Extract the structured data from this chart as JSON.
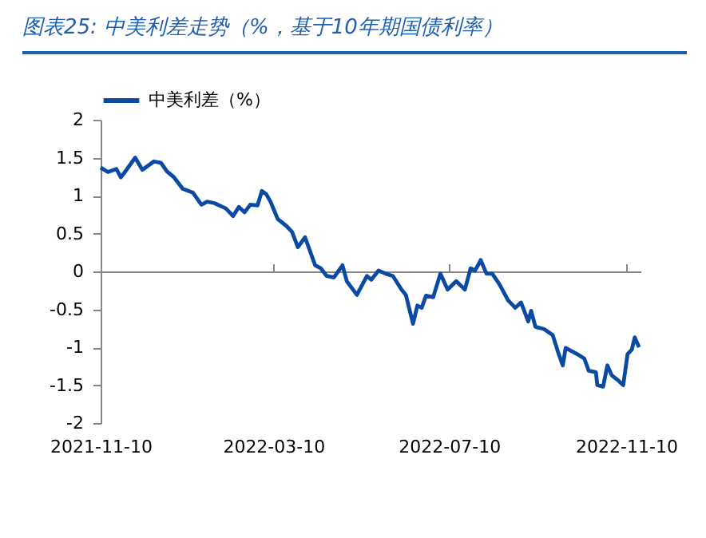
{
  "chart_data": {
    "type": "line",
    "title": "图表25:  中美利差走势（%，基于10年期国债利率）",
    "x": [
      "2021-11-10",
      "2021-11-15",
      "2021-11-21",
      "2021-11-24",
      "2021-11-28",
      "2021-12-04",
      "2021-12-09",
      "2021-12-17",
      "2021-12-22",
      "2021-12-26",
      "2021-12-31",
      "2022-01-06",
      "2022-01-13",
      "2022-01-19",
      "2022-01-23",
      "2022-01-28",
      "2022-02-05",
      "2022-02-10",
      "2022-02-14",
      "2022-02-18",
      "2022-02-22",
      "2022-02-27",
      "2022-03-02",
      "2022-03-05",
      "2022-03-08",
      "2022-03-13",
      "2022-03-19",
      "2022-03-23",
      "2022-03-27",
      "2022-04-01",
      "2022-04-08",
      "2022-04-12",
      "2022-04-16",
      "2022-04-21",
      "2022-04-27",
      "2022-04-30",
      "2022-05-07",
      "2022-05-14",
      "2022-05-17",
      "2022-05-22",
      "2022-05-27",
      "2022-06-01",
      "2022-06-07",
      "2022-06-10",
      "2022-06-15",
      "2022-06-18",
      "2022-06-21",
      "2022-06-24",
      "2022-06-29",
      "2022-07-04",
      "2022-07-09",
      "2022-07-15",
      "2022-07-21",
      "2022-07-25",
      "2022-07-28",
      "2022-07-31",
      "2022-08-01",
      "2022-08-05",
      "2022-08-09",
      "2022-08-14",
      "2022-08-20",
      "2022-08-25",
      "2022-08-29",
      "2022-09-03",
      "2022-09-05",
      "2022-09-08",
      "2022-09-14",
      "2022-09-20",
      "2022-09-24",
      "2022-09-27",
      "2022-09-29",
      "2022-10-07",
      "2022-10-12",
      "2022-10-15",
      "2022-10-20",
      "2022-10-21",
      "2022-10-25",
      "2022-10-28",
      "2022-10-31",
      "2022-11-04",
      "2022-11-08",
      "2022-11-11",
      "2022-11-14",
      "2022-11-16",
      "2022-11-19"
    ],
    "series": [
      {
        "name": "中美利差（%）",
        "color": "#0b4aa2",
        "values": [
          1.37,
          1.31,
          1.35,
          1.24,
          1.34,
          1.5,
          1.34,
          1.45,
          1.43,
          1.32,
          1.24,
          1.09,
          1.04,
          0.88,
          0.92,
          0.9,
          0.83,
          0.73,
          0.85,
          0.78,
          0.88,
          0.87,
          1.06,
          1.02,
          0.92,
          0.69,
          0.6,
          0.52,
          0.32,
          0.45,
          0.08,
          0.04,
          -0.06,
          -0.08,
          0.08,
          -0.13,
          -0.31,
          -0.06,
          -0.11,
          0.01,
          -0.03,
          -0.06,
          -0.24,
          -0.31,
          -0.69,
          -0.45,
          -0.48,
          -0.32,
          -0.34,
          -0.03,
          -0.24,
          -0.13,
          -0.24,
          0.04,
          0.01,
          0.11,
          0.15,
          -0.03,
          -0.03,
          -0.17,
          -0.38,
          -0.48,
          -0.41,
          -0.66,
          -0.52,
          -0.73,
          -0.76,
          -0.84,
          -1.08,
          -1.24,
          -1.01,
          -1.09,
          -1.15,
          -1.31,
          -1.33,
          -1.5,
          -1.52,
          -1.24,
          -1.37,
          -1.43,
          -1.5,
          -1.09,
          -1.03,
          -0.87,
          -1.0
        ]
      }
    ],
    "xlim": [
      "2021-11-10",
      "2022-11-20"
    ],
    "xticks": [
      "2021-11-10",
      "2022-03-10",
      "2022-07-10",
      "2022-11-10"
    ],
    "ylim": [
      -2,
      2
    ],
    "yticks": [
      -2,
      -1.5,
      -1,
      -0.5,
      0,
      0.5,
      1,
      1.5,
      2
    ],
    "legend": "top",
    "line_style": "solid"
  }
}
